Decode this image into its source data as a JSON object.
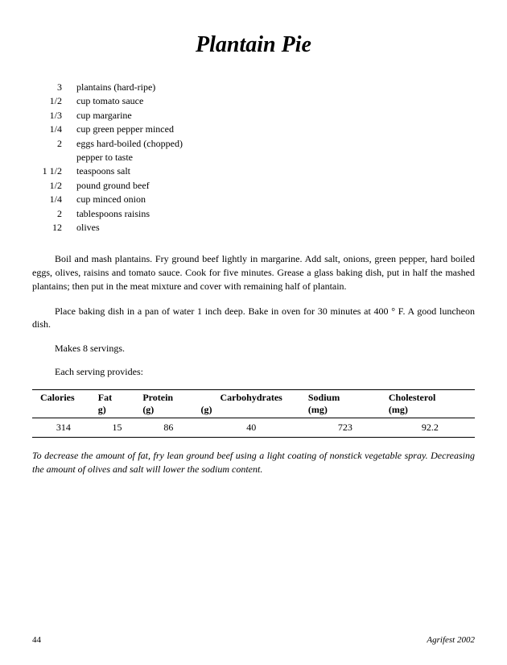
{
  "title": "Plantain Pie",
  "ingredients": [
    {
      "qty": "3",
      "item": "plantains (hard-ripe)"
    },
    {
      "qty": "1/2",
      "item": "cup tomato sauce"
    },
    {
      "qty": "1/3",
      "item": "cup margarine"
    },
    {
      "qty": "1/4",
      "item": "cup green pepper minced"
    },
    {
      "qty": "2",
      "item": "eggs hard-boiled (chopped)"
    },
    {
      "qty": "",
      "item": "pepper to taste"
    },
    {
      "qty": "1 1/2",
      "item": "teaspoons salt"
    },
    {
      "qty": "1/2",
      "item": "pound ground beef"
    },
    {
      "qty": "1/4",
      "item": "cup minced onion"
    },
    {
      "qty": "2",
      "item": "tablespoons raisins"
    },
    {
      "qty": "12",
      "item": "olives"
    }
  ],
  "instructions": [
    "Boil and mash plantains. Fry ground beef lightly in margarine. Add salt, onions, green pepper, hard boiled eggs, olives, raisins and tomato sauce. Cook for five minutes. Grease a glass baking dish, put in half the mashed plantains; then put in the meat mixture and cover with remaining half of plantain.",
    "Place baking dish in a pan of water 1 inch deep. Bake in oven for 30 minutes at 400 ° F. A good luncheon dish."
  ],
  "servings_text": "Makes 8 servings.",
  "provides_text": "Each serving provides:",
  "nutrition": {
    "headers": [
      "Calories",
      "Fat",
      "Protein",
      "Carbohydrates",
      "Sodium",
      "Cholesterol"
    ],
    "units": [
      "",
      "g)",
      "(g)",
      "(g)",
      "(mg)",
      "(mg)"
    ],
    "values": [
      "314",
      "15",
      "86",
      "40",
      "723",
      "92.2"
    ]
  },
  "note": "To decrease the amount of fat, fry lean ground beef using a light coating of nonstick vegetable spray. Decreasing the amount of olives and salt will lower the sodium content.",
  "page_number": "44",
  "source": "Agrifest 2002"
}
